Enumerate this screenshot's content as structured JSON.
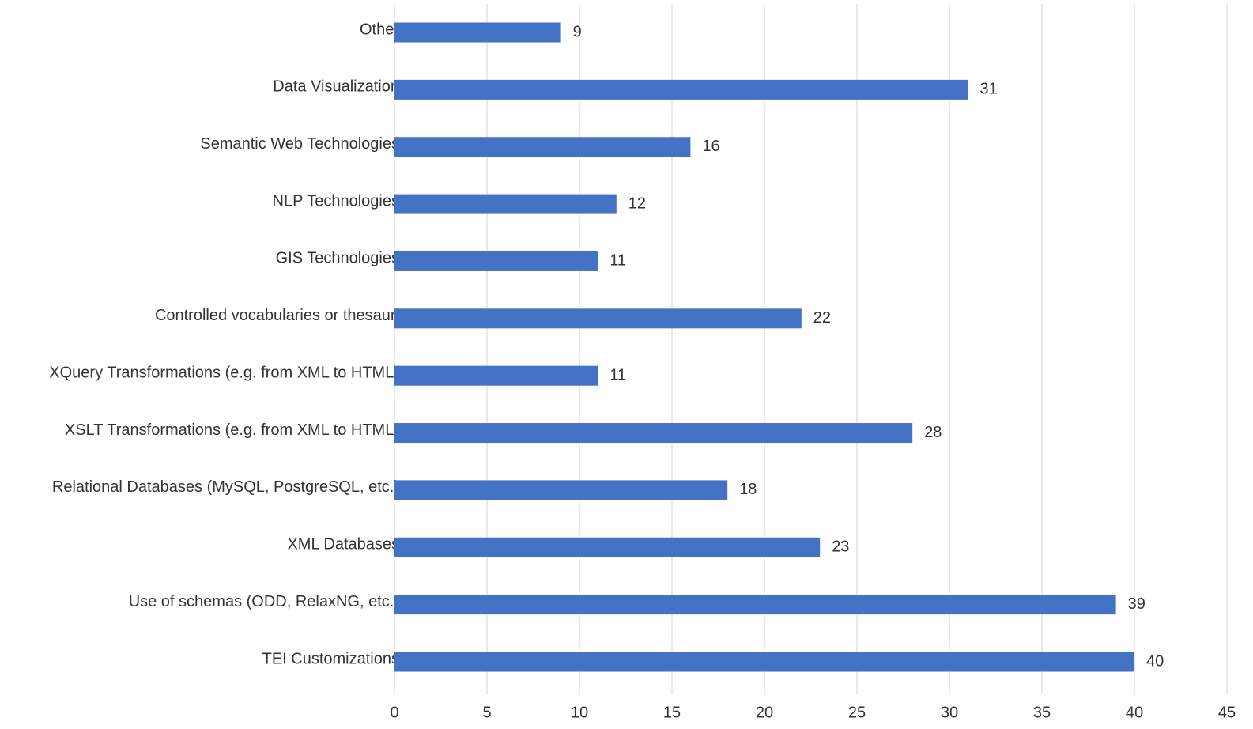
{
  "chart_data": {
    "type": "bar",
    "orientation": "horizontal",
    "categories": [
      "Other",
      "Data Visualization",
      "Semantic Web Technologies",
      "NLP Technologies",
      "GIS Technologies",
      "Controlled vocabularies or thesauri",
      "XQuery Transformations (e.g. from XML to HTML)",
      "XSLT Transformations (e.g. from XML to HTML)",
      "Relational Databases (MySQL, PostgreSQL, etc.)",
      "XML Databases",
      "Use of schemas (ODD, RelaxNG, etc.)",
      "TEI Customizations"
    ],
    "values": [
      9,
      31,
      16,
      12,
      11,
      22,
      11,
      28,
      18,
      23,
      39,
      40
    ],
    "color": "#4472c4",
    "xlim": [
      0,
      45
    ],
    "xticks": [
      0,
      5,
      10,
      15,
      20,
      25,
      30,
      35,
      40,
      45
    ],
    "grid": true
  }
}
